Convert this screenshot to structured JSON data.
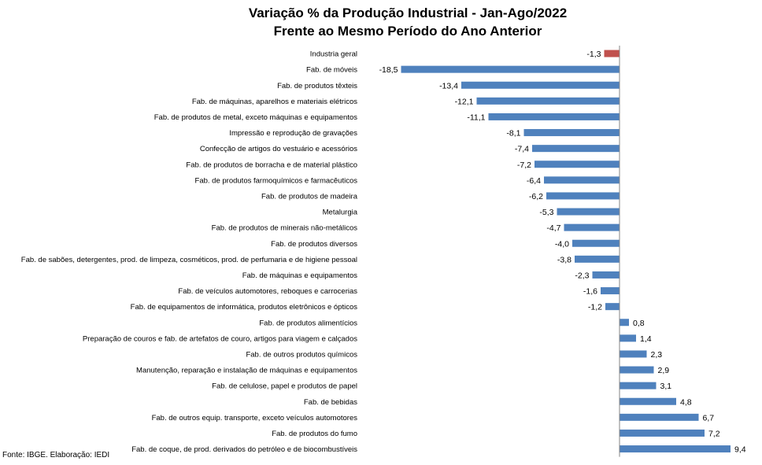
{
  "chart_data": {
    "type": "bar",
    "orientation": "horizontal",
    "title": "Variação % da Produção Industrial - Jan-Ago/2022",
    "subtitle": "Frente ao Mesmo Período do Ano Anterior",
    "xlabel": "",
    "ylabel": "",
    "xlim": [
      -19,
      10
    ],
    "grid": false,
    "legend": "none",
    "categories": [
      "Industria geral",
      "Fab. de móveis",
      "Fab. de produtos têxteis",
      "Fab. de máquinas, aparelhos e materiais elétricos",
      "Fab. de produtos de metal, exceto máquinas e equipamentos",
      "Impressão e reprodução de gravações",
      "Confecção de artigos do vestuário e acessórios",
      "Fab. de produtos de borracha e de material plástico",
      "Fab. de produtos farmoquímicos e farmacêuticos",
      "Fab. de produtos de madeira",
      "Metalurgia",
      "Fab. de produtos de minerais não-metálicos",
      "Fab. de produtos diversos",
      "Fab. de sabões, detergentes, prod. de limpeza, cosméticos, prod. de perfumaria e de higiene pessoal",
      "Fab. de máquinas e equipamentos",
      "Fab. de veículos automotores, reboques e carrocerias",
      "Fab. de equipamentos de informática, produtos eletrônicos e ópticos",
      "Fab. de produtos alimentícios",
      "Preparação de couros e fab. de artefatos de couro, artigos para viagem e calçados",
      "Fab. de outros produtos químicos",
      "Manutenção, reparação e instalação de máquinas e equipamentos",
      "Fab. de celulose, papel e produtos de papel",
      "Fab. de bebidas",
      "Fab. de outros equip. transporte, exceto veículos automotores",
      "Fab. de produtos do fumo",
      "Fab. de coque, de prod. derivados do petróleo e de biocombustíveis"
    ],
    "values": [
      -1.3,
      -18.5,
      -13.4,
      -12.1,
      -11.1,
      -8.1,
      -7.4,
      -7.2,
      -6.4,
      -6.2,
      -5.3,
      -4.7,
      -4.0,
      -3.8,
      -2.3,
      -1.6,
      -1.2,
      0.8,
      1.4,
      2.3,
      2.9,
      3.1,
      4.8,
      6.7,
      7.2,
      9.4
    ],
    "value_labels": [
      "-1,3",
      "-18,5",
      "-13,4",
      "-12,1",
      "-11,1",
      "-8,1",
      "-7,4",
      "-7,2",
      "-6,4",
      "-6,2",
      "-5,3",
      "-4,7",
      "-4,0",
      "-3,8",
      "-2,3",
      "-1,6",
      "-1,2",
      "0,8",
      "1,4",
      "2,3",
      "2,9",
      "3,1",
      "4,8",
      "6,7",
      "7,2",
      "9,4"
    ],
    "colors": {
      "default": "#4f81bd",
      "highlight": "#c0504d",
      "highlight_index": 0
    }
  },
  "footer": {
    "source": "Fonte: IBGE. Elaboração: IEDI"
  }
}
